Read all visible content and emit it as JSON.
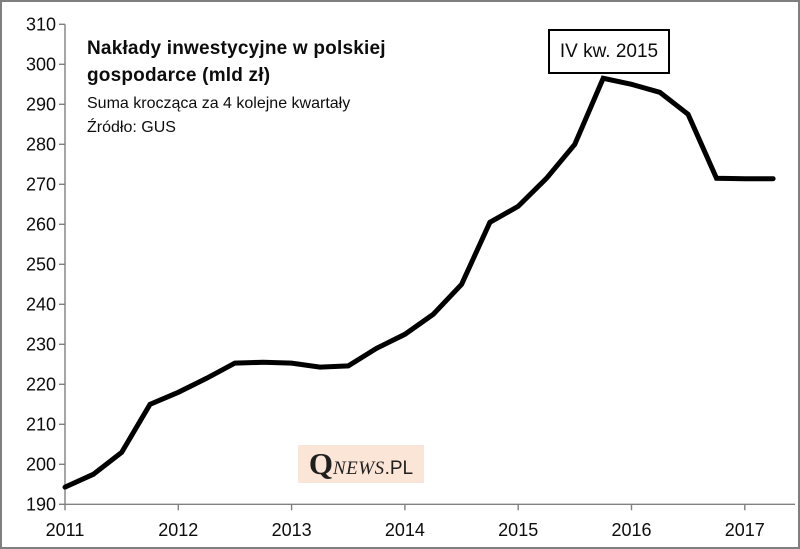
{
  "chart_data": {
    "type": "line",
    "title": "Nakłady inwestycyjne w polskiej gospodarce (mld zł)",
    "subtitle": "Suma krocząca za 4 kolejne kwartały",
    "source": "Źródło: GUS",
    "annotation": "IV kw. 2015",
    "x_tick_labels": [
      "2011",
      "2012",
      "2013",
      "2014",
      "2015",
      "2016",
      "2017"
    ],
    "x_tick_years": [
      2011,
      2012,
      2013,
      2014,
      2015,
      2016,
      2017
    ],
    "y_ticks": [
      190,
      200,
      210,
      220,
      230,
      240,
      250,
      260,
      270,
      280,
      290,
      300,
      310
    ],
    "ylim": [
      190,
      310
    ],
    "xlim": [
      2011,
      2017.45
    ],
    "grid": false,
    "legend_position": "none",
    "line_color": "#000000",
    "axis_color": "#808080",
    "quarters": [
      "2011 Q1",
      "2011 Q2",
      "2011 Q3",
      "2011 Q4",
      "2012 Q1",
      "2012 Q2",
      "2012 Q3",
      "2012 Q4",
      "2013 Q1",
      "2013 Q2",
      "2013 Q3",
      "2013 Q4",
      "2014 Q1",
      "2014 Q2",
      "2014 Q3",
      "2014 Q4",
      "2015 Q1",
      "2015 Q2",
      "2015 Q3",
      "2015 Q4",
      "2016 Q1",
      "2016 Q2",
      "2016 Q3",
      "2016 Q4",
      "2017 Q1",
      "2017 Q2"
    ],
    "values": [
      194.3,
      197.5,
      203.0,
      215.0,
      218.0,
      221.5,
      225.3,
      225.5,
      225.3,
      224.3,
      224.6,
      229.0,
      232.5,
      237.5,
      245.0,
      260.5,
      264.5,
      271.5,
      280.0,
      296.5,
      295.0,
      293.0,
      287.5,
      271.5,
      271.4,
      271.4
    ]
  },
  "watermark": {
    "q": "Q",
    "news": "NEWS",
    "pl": ".PL",
    "bg_color": "#fbe5d6"
  }
}
